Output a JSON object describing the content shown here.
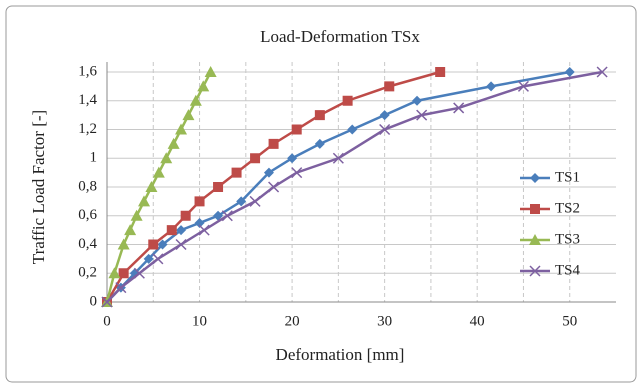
{
  "chart_data": {
    "type": "line",
    "title": "Load-Deformation TSx",
    "x_label": "Deformation [mm]",
    "y_label": "Traffic Load Factor [-]",
    "xlim": [
      0,
      55
    ],
    "xticks": [
      0,
      10,
      20,
      30,
      40,
      50
    ],
    "xminorticks": [
      5,
      15,
      25,
      35,
      45
    ],
    "ylim": [
      0,
      1.6
    ],
    "yticks": [
      0,
      {
        "value": 0.2,
        "label": "0,2"
      },
      {
        "value": 0.4,
        "label": "0,4"
      },
      {
        "value": 0.6,
        "label": "0,6"
      },
      {
        "value": 0.8,
        "label": "0,8"
      },
      1,
      {
        "value": 1.2,
        "label": "1,2"
      },
      {
        "value": 1.4,
        "label": "1,4"
      },
      {
        "value": 1.6,
        "label": "1,6"
      }
    ],
    "grid": true,
    "legend": "right",
    "series": [
      {
        "name": "TS1",
        "color": "#4a7ebb",
        "marker": "diamond",
        "x": [
          0,
          1.5,
          3,
          4.5,
          6,
          8,
          10,
          12,
          14.5,
          17.5,
          20,
          23,
          26.5,
          30,
          33.5,
          41.5,
          50
        ],
        "values": [
          0,
          0.1,
          0.2,
          0.3,
          0.4,
          0.5,
          0.55,
          0.6,
          0.7,
          0.9,
          1.0,
          1.1,
          1.2,
          1.3,
          1.4,
          1.5,
          1.6
        ]
      },
      {
        "name": "TS2",
        "color": "#be4b48",
        "marker": "square",
        "x": [
          0,
          1.8,
          5,
          7,
          8.5,
          10,
          12,
          14,
          16,
          18,
          20.5,
          23,
          26,
          30.5,
          36
        ],
        "values": [
          0,
          0.2,
          0.4,
          0.5,
          0.6,
          0.7,
          0.8,
          0.9,
          1.0,
          1.1,
          1.2,
          1.3,
          1.4,
          1.5,
          1.6
        ]
      },
      {
        "name": "TS3",
        "color": "#98b954",
        "marker": "triangle",
        "x": [
          0,
          0.8,
          1.8,
          2.5,
          3.2,
          4,
          4.8,
          5.6,
          6.4,
          7.2,
          8,
          8.8,
          9.6,
          10.4,
          11.2
        ],
        "values": [
          0,
          0.2,
          0.4,
          0.5,
          0.6,
          0.7,
          0.8,
          0.9,
          1.0,
          1.1,
          1.2,
          1.3,
          1.4,
          1.5,
          1.6
        ]
      },
      {
        "name": "TS4",
        "color": "#7d60a0",
        "marker": "x",
        "x": [
          0,
          1.5,
          3.5,
          5.5,
          8,
          10.5,
          13,
          16,
          18,
          20.5,
          25,
          30,
          34,
          38,
          45,
          53.5
        ],
        "values": [
          0,
          0.1,
          0.2,
          0.3,
          0.4,
          0.5,
          0.6,
          0.7,
          0.8,
          0.9,
          1.0,
          1.2,
          1.3,
          1.35,
          1.5,
          1.6
        ]
      }
    ]
  }
}
